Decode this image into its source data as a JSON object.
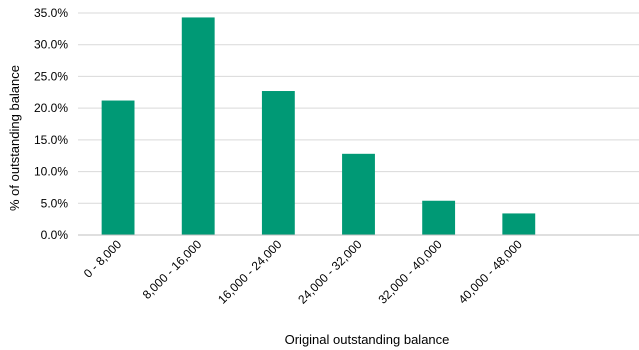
{
  "chart_data": {
    "type": "bar",
    "categories": [
      "0 - 8,000",
      "8,000 - 16,000",
      "16,000 - 24,000",
      "24,000 - 32,000",
      "32,000 - 40,000",
      "40,000 - 48,000",
      ""
    ],
    "values": [
      21.2,
      34.3,
      22.7,
      12.8,
      5.4,
      3.4,
      null
    ],
    "xlabel": "Original outstanding balance",
    "ylabel": "% of outstanding balance",
    "ylim": [
      0,
      35
    ],
    "yticks": [
      0,
      5,
      10,
      15,
      20,
      25,
      30,
      35
    ],
    "ytick_labels": [
      "0.0%",
      "5.0%",
      "10.0%",
      "15.0%",
      "20.0%",
      "25.0%",
      "30.0%",
      "35.0%"
    ],
    "grid": true,
    "bar_color": "#009975"
  }
}
